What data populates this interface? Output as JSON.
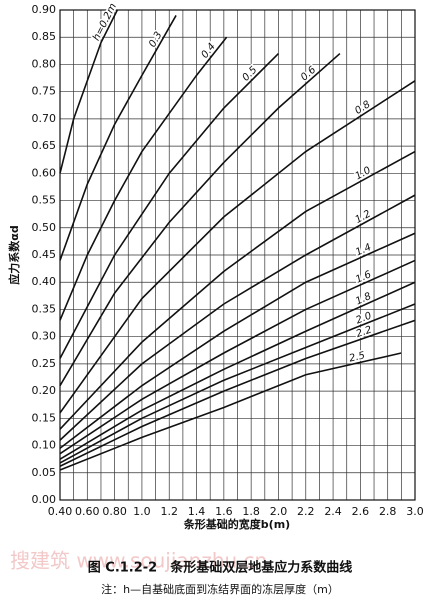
{
  "chart_data": {
    "type": "line",
    "x_label": "条形基础的宽度b(m)",
    "y_label": "应力系数αd",
    "caption": "图 C.1.2-2　条形基础双层地基应力系数曲线",
    "note": "注：h—自基础底面到冻结界面的冻层厚度（m）",
    "watermark": "搜建筑 www.soujianzhu.cn",
    "xlim": [
      0.4,
      3.0
    ],
    "ylim": [
      0,
      0.9
    ],
    "xticks": [
      {
        "value": 0.4,
        "label": "0.40"
      },
      {
        "value": 0.6,
        "label": "0.60"
      },
      {
        "value": 0.8,
        "label": "0.80"
      },
      {
        "value": 1.0,
        "label": "1.0"
      },
      1.2,
      1.4,
      1.6,
      1.8,
      {
        "value": 2.0,
        "label": "2.0"
      },
      2.2,
      2.4,
      2.6,
      2.8,
      {
        "value": 3.0,
        "label": "3.0"
      }
    ],
    "x_minor_ticks": [
      0.5,
      0.7,
      0.9,
      1.1,
      1.3,
      1.5,
      1.7,
      1.9,
      2.1,
      2.3,
      2.5,
      2.7,
      2.9
    ],
    "yticks": [
      {
        "value": 0,
        "label": "0.00"
      },
      {
        "value": 0.05,
        "label": "0.05"
      },
      {
        "value": 0.1,
        "label": "0.10"
      },
      {
        "value": 0.15,
        "label": "0.15"
      },
      {
        "value": 0.2,
        "label": "0.20"
      },
      {
        "value": 0.25,
        "label": "0.25"
      },
      {
        "value": 0.3,
        "label": "0.30"
      },
      {
        "value": 0.35,
        "label": "0.35"
      },
      {
        "value": 0.4,
        "label": "0.40"
      },
      {
        "value": 0.45,
        "label": "0.45"
      },
      {
        "value": 0.5,
        "label": "0.50"
      },
      {
        "value": 0.55,
        "label": "0.55"
      },
      {
        "value": 0.6,
        "label": "0.60"
      },
      {
        "value": 0.65,
        "label": "0.65"
      },
      {
        "value": 0.7,
        "label": "0.70"
      },
      {
        "value": 0.75,
        "label": "0.75"
      },
      {
        "value": 0.8,
        "label": "0.80"
      },
      {
        "value": 0.85,
        "label": "0.85"
      },
      {
        "value": 0.9,
        "label": "0.90"
      }
    ],
    "grid": true,
    "color": "#111111",
    "series": [
      {
        "name": "h=0.2m",
        "x": [
          0.4,
          0.5,
          0.6,
          0.7,
          0.82
        ],
        "values": [
          0.6,
          0.7,
          0.77,
          0.84,
          0.9
        ]
      },
      {
        "name": "0.3",
        "x": [
          0.4,
          0.6,
          0.8,
          1.0,
          1.25
        ],
        "values": [
          0.44,
          0.58,
          0.69,
          0.78,
          0.89
        ]
      },
      {
        "name": "0.4",
        "x": [
          0.4,
          0.6,
          0.8,
          1.0,
          1.2,
          1.4,
          1.62
        ],
        "values": [
          0.33,
          0.45,
          0.55,
          0.64,
          0.71,
          0.78,
          0.85
        ]
      },
      {
        "name": "0.5",
        "x": [
          0.4,
          0.8,
          1.2,
          1.6,
          2.0
        ],
        "values": [
          0.26,
          0.45,
          0.6,
          0.72,
          0.82
        ]
      },
      {
        "name": "0.6",
        "x": [
          0.4,
          0.8,
          1.2,
          1.6,
          2.0,
          2.45
        ],
        "values": [
          0.21,
          0.38,
          0.51,
          0.62,
          0.72,
          0.82
        ]
      },
      {
        "name": "0.8",
        "x": [
          0.4,
          1.0,
          1.6,
          2.2,
          3.0
        ],
        "values": [
          0.16,
          0.37,
          0.52,
          0.64,
          0.77
        ]
      },
      {
        "name": "1.0",
        "x": [
          0.4,
          1.0,
          1.6,
          2.2,
          3.0
        ],
        "values": [
          0.13,
          0.29,
          0.42,
          0.53,
          0.64
        ]
      },
      {
        "name": "1.2",
        "x": [
          0.4,
          1.0,
          1.6,
          2.2,
          3.0
        ],
        "values": [
          0.11,
          0.25,
          0.36,
          0.45,
          0.56
        ]
      },
      {
        "name": "1.4",
        "x": [
          0.4,
          1.0,
          1.6,
          2.2,
          3.0
        ],
        "values": [
          0.095,
          0.21,
          0.31,
          0.4,
          0.49
        ]
      },
      {
        "name": "1.6",
        "x": [
          0.4,
          1.0,
          1.6,
          2.2,
          3.0
        ],
        "values": [
          0.085,
          0.185,
          0.27,
          0.35,
          0.44
        ]
      },
      {
        "name": "1.8",
        "x": [
          0.4,
          1.0,
          1.6,
          2.2,
          3.0
        ],
        "values": [
          0.075,
          0.165,
          0.24,
          0.31,
          0.4
        ]
      },
      {
        "name": "2.0",
        "x": [
          0.4,
          1.0,
          1.6,
          2.2,
          3.0
        ],
        "values": [
          0.068,
          0.15,
          0.22,
          0.28,
          0.36
        ]
      },
      {
        "name": "2.2",
        "x": [
          0.4,
          1.0,
          1.6,
          2.2,
          3.0
        ],
        "values": [
          0.062,
          0.135,
          0.2,
          0.26,
          0.33
        ]
      },
      {
        "name": "2.5",
        "x": [
          0.4,
          1.0,
          1.6,
          2.2,
          2.9
        ],
        "values": [
          0.055,
          0.115,
          0.17,
          0.23,
          0.27
        ]
      }
    ]
  }
}
